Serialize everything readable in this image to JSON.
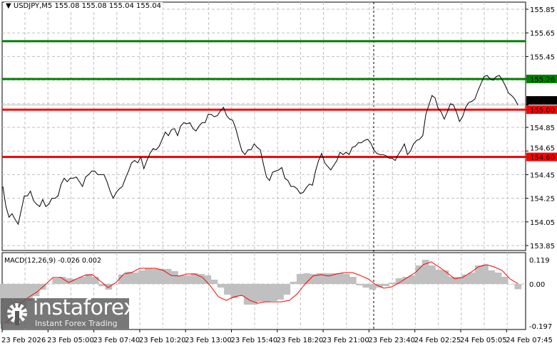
{
  "header": {
    "symbol": "USDJPY,M5",
    "ohlc": "155.08 155.08 155.04 155.04",
    "menu_icon": "triangle-down-icon"
  },
  "chart_data": [
    {
      "type": "line",
      "title": "USDJPY,M5",
      "ylim": [
        153.85,
        155.85
      ],
      "yticks": [
        "155.85",
        "155.65",
        "155.45",
        "155.26",
        "155.04",
        "155.00",
        "154.85",
        "154.65",
        "154.60",
        "154.45",
        "154.25",
        "154.05",
        "153.85"
      ],
      "grid_yticks": [
        155.85,
        155.65,
        155.45,
        155.25,
        155.05,
        154.85,
        154.65,
        154.45,
        154.25,
        154.05,
        153.85
      ],
      "xticks": [
        "23 Feb 2026",
        "23 Feb 05:00",
        "23 Feb 07:40",
        "23 Feb 10:20",
        "23 Feb 13:00",
        "23 Feb 15:40",
        "23 Feb 18:20",
        "23 Feb 21:00",
        "23 Feb 23:40",
        "24 Feb 02:25",
        "24 Feb 05:05",
        "24 Feb 07:45"
      ],
      "grid": true,
      "close": [
        154.35,
        154.18,
        154.09,
        154.12,
        154.07,
        154.03,
        154.15,
        154.27,
        154.27,
        154.31,
        154.23,
        154.2,
        154.18,
        154.24,
        154.18,
        154.2,
        154.25,
        154.25,
        154.27,
        154.37,
        154.42,
        154.39,
        154.42,
        154.42,
        154.43,
        154.39,
        154.35,
        154.43,
        154.45,
        154.48,
        154.48,
        154.45,
        154.45,
        154.45,
        154.39,
        154.31,
        154.25,
        154.3,
        154.33,
        154.35,
        154.42,
        154.48,
        154.55,
        154.57,
        154.55,
        154.6,
        154.5,
        154.57,
        154.63,
        154.67,
        154.66,
        154.69,
        154.75,
        154.81,
        154.78,
        154.83,
        154.84,
        154.78,
        154.86,
        154.89,
        154.88,
        154.89,
        154.84,
        154.82,
        154.86,
        154.89,
        154.89,
        154.96,
        154.96,
        154.94,
        154.95,
        154.99,
        155.02,
        154.95,
        154.92,
        154.91,
        154.84,
        154.74,
        154.65,
        154.62,
        154.66,
        154.66,
        154.71,
        154.68,
        154.66,
        154.54,
        154.43,
        154.4,
        154.47,
        154.48,
        154.49,
        154.51,
        154.42,
        154.4,
        154.35,
        154.35,
        154.33,
        154.29,
        154.3,
        154.34,
        154.37,
        154.36,
        154.48,
        154.57,
        154.63,
        154.55,
        154.52,
        154.49,
        154.53,
        154.57,
        154.64,
        154.62,
        154.64,
        154.62,
        154.68,
        154.69,
        154.72,
        154.72,
        154.74,
        154.75,
        154.72,
        154.66,
        154.63,
        154.62,
        154.62,
        154.61,
        154.59,
        154.59,
        154.57,
        154.62,
        154.66,
        154.71,
        154.62,
        154.65,
        154.71,
        154.74,
        154.75,
        154.78,
        154.96,
        155.04,
        155.12,
        155.1,
        155.01,
        154.98,
        154.92,
        154.98,
        155.05,
        155.04,
        154.98,
        154.9,
        154.94,
        155.02,
        155.06,
        155.07,
        155.09,
        155.16,
        155.22,
        155.28,
        155.29,
        155.26,
        155.25,
        155.28,
        155.29,
        155.25,
        155.2,
        155.14,
        155.12,
        155.09,
        155.04
      ],
      "levels": [
        {
          "value": 155.58,
          "label": "155.58",
          "color": "#008000"
        },
        {
          "value": 155.26,
          "label": "155.26",
          "color": "#008000"
        },
        {
          "value": 155.0,
          "label": "155.00",
          "color": "#ff0000"
        },
        {
          "value": 154.6,
          "label": "154.60",
          "color": "#ff0000"
        }
      ],
      "current_price": {
        "value": 155.04,
        "label": "155.04",
        "color": "#000000"
      },
      "line_color": "#000000"
    },
    {
      "type": "bar",
      "title": "MACD(12,26,9) -0.026 0.002",
      "ylim": [
        -0.197,
        0.119
      ],
      "yticks": [
        "0.119",
        "0.00",
        "-0.197"
      ],
      "histogram": [
        -0.197,
        -0.197,
        -0.175,
        -0.133,
        -0.084,
        -0.06,
        -0.028,
        0,
        0.028,
        0.035,
        0.028,
        0.025,
        0.035,
        0.049,
        0.035,
        -0.011,
        -0.028,
        0,
        0.046,
        0.06,
        0.056,
        0.067,
        0.077,
        0.074,
        0.074,
        0.074,
        0.063,
        0.042,
        0.042,
        0.053,
        0.049,
        0.042,
        0.021,
        -0.018,
        -0.053,
        -0.07,
        -0.06,
        -0.102,
        -0.102,
        -0.088,
        -0.088,
        -0.084,
        -0.077,
        -0.053,
        0.011,
        0.049,
        0.053,
        0.049,
        0.053,
        0.053,
        0.053,
        0.053,
        0.049,
        0.035,
        -0.007,
        -0.018,
        -0.028,
        -0.018,
        -0.011,
        0.007,
        0.028,
        0.035,
        0.042,
        0.091,
        0.119,
        0.091,
        0.07,
        0.067,
        0.035,
        0.035,
        0.046,
        0.056,
        0.091,
        0.095,
        0.067,
        0.056,
        0.035,
        0,
        -0.026
      ],
      "signal": [
        -0.19,
        -0.161,
        -0.091,
        -0.063,
        -0.039,
        -0.004,
        0.032,
        0.032,
        0.007,
        0.025,
        0.042,
        0.046,
        0.014,
        -0.018,
        0.007,
        0.049,
        0.056,
        0.077,
        0.077,
        0.077,
        0.067,
        0.042,
        0.039,
        0.049,
        0.049,
        0.032,
        -0.011,
        -0.063,
        -0.081,
        -0.063,
        -0.056,
        -0.081,
        -0.095,
        -0.088,
        -0.088,
        -0.088,
        -0.081,
        -0.049,
        0,
        0.039,
        0.046,
        0.039,
        0.049,
        0.056,
        0.056,
        0.042,
        0.025,
        -0.004,
        -0.021,
        -0.014,
        0.007,
        0.032,
        0.056,
        0.095,
        0.109,
        0.084,
        0.056,
        0.025,
        0.032,
        0.056,
        0.084,
        0.095,
        0.084,
        0.067,
        0.025,
        0.002
      ],
      "histogram_color": "#c0c0c0",
      "signal_color": "#ff0000"
    }
  ],
  "watermark": {
    "brand": "instaforex",
    "tagline": "Instant Forex Trading"
  }
}
